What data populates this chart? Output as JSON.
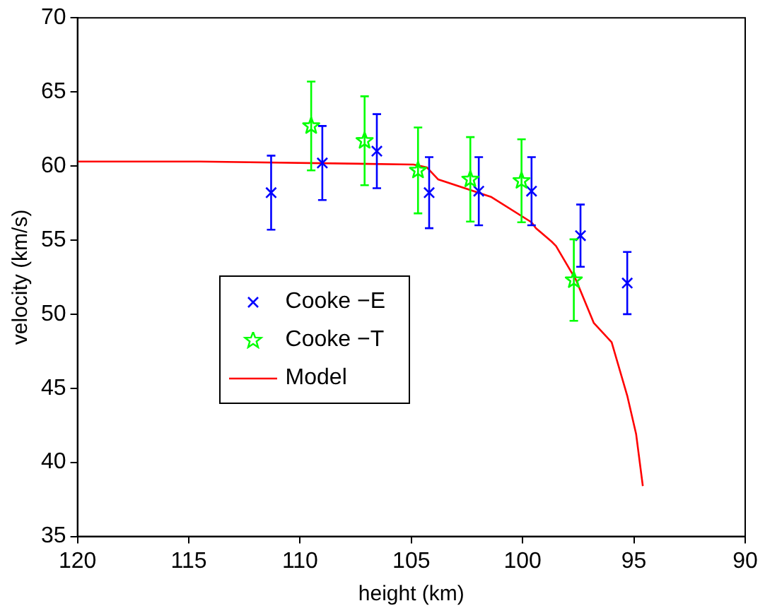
{
  "chart_data": {
    "type": "scatter",
    "xlabel": "height (km)",
    "ylabel": "velocity (km/s)",
    "xlim": [
      120,
      90
    ],
    "xticks": [
      120,
      115,
      110,
      105,
      100,
      95,
      90
    ],
    "ylim": [
      35,
      70
    ],
    "yticks": [
      35,
      40,
      45,
      50,
      55,
      60,
      65,
      70
    ],
    "grid": false,
    "legend": "left",
    "series": [
      {
        "name": "Cooke −E",
        "marker": "cross",
        "color": "#0000ff",
        "x": [
          111.3,
          109.0,
          106.55,
          104.2,
          101.97,
          99.6,
          97.4,
          95.3
        ],
        "values": [
          58.2,
          60.2,
          61.0,
          58.2,
          58.3,
          58.3,
          55.3,
          52.1
        ],
        "errors": [
          2.5,
          2.5,
          2.5,
          2.4,
          2.3,
          2.3,
          2.1,
          2.1
        ]
      },
      {
        "name": "Cooke −T",
        "marker": "star",
        "color": "#00ff00",
        "x": [
          109.5,
          107.1,
          104.7,
          102.35,
          100.05,
          97.7
        ],
        "values": [
          62.7,
          61.7,
          59.7,
          59.1,
          59.0,
          52.3
        ],
        "errors": [
          3.0,
          3.0,
          2.9,
          2.85,
          2.8,
          2.75
        ]
      },
      {
        "name": "Model",
        "type": "line",
        "marker": "none",
        "line_style": "solid",
        "color": "#ff0000",
        "x": [
          120,
          114.5,
          104.9,
          104.3,
          103.8,
          101.4,
          99.6,
          99.4,
          98.7,
          98.5,
          97.6,
          96.8,
          96.0,
          95.3,
          94.9,
          94.6
        ],
        "values": [
          60.3,
          60.3,
          60.1,
          59.9,
          59.1,
          57.9,
          56.2,
          55.8,
          54.9,
          54.6,
          52.3,
          49.4,
          48.1,
          44.5,
          41.9,
          38.4
        ]
      }
    ]
  }
}
